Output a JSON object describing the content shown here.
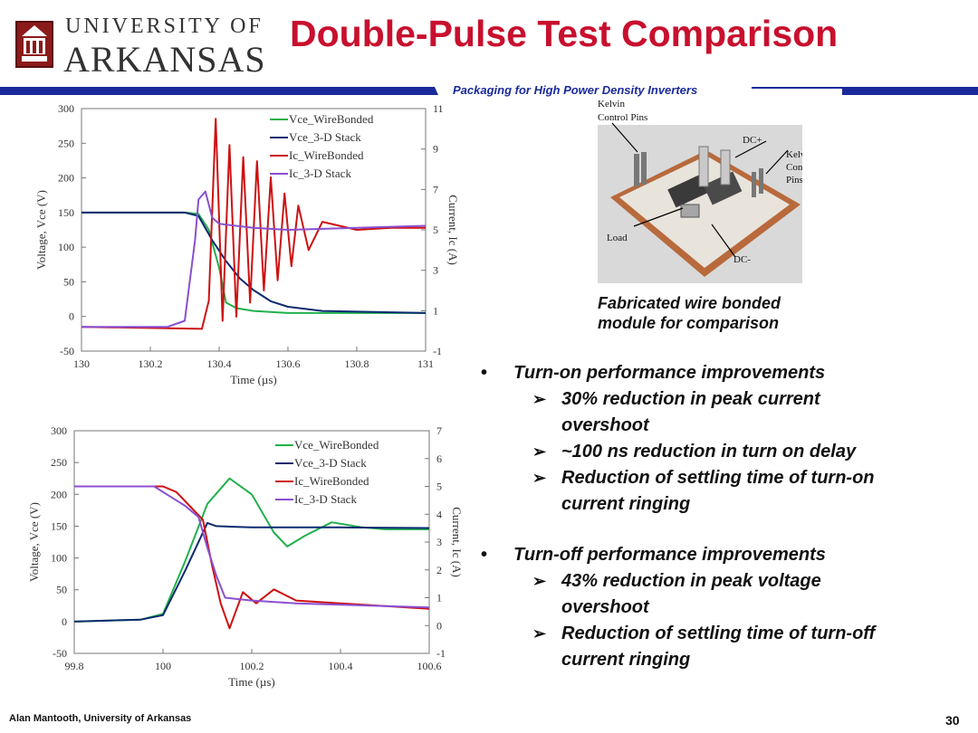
{
  "header": {
    "logo_line1": "UNIVERSITY OF",
    "logo_line2": "ARKANSAS",
    "title": "Double-Pulse Test Comparison",
    "subtitle": "Packaging for High Power Density Inverters"
  },
  "colors": {
    "title_red": "#c8102e",
    "band_blue": "#1a2a9a",
    "vce_wirebonded": "#22b04c",
    "vce_3d": "#0c2a70",
    "ic_wirebonded": "#cc1111",
    "ic_3d": "#8a4fd0"
  },
  "chart_data": [
    {
      "type": "line",
      "title": "",
      "xlabel": "Time (µs)",
      "ylabel": "Voltage, Vce (V)",
      "y2label": "Current, Ic (A)",
      "xlim": [
        130,
        131
      ],
      "ylim": [
        -50,
        300
      ],
      "y2lim": [
        -1,
        11
      ],
      "x_ticks": [
        "130",
        "130.2",
        "130.4",
        "130.6",
        "130.8",
        "131"
      ],
      "y_ticks": [
        "300",
        "250",
        "200",
        "150",
        "100",
        "50",
        "0",
        "-50"
      ],
      "y2_ticks": [
        "11",
        "9",
        "7",
        "5",
        "3",
        "1",
        "-1"
      ],
      "legend": [
        "Vce_WireBonded",
        "Vce_3-D Stack",
        "Ic_WireBonded",
        "Ic_3-D Stack"
      ],
      "legend_position": "top-right",
      "series": [
        {
          "name": "Vce_WireBonded",
          "axis": "left",
          "x": [
            130,
            130.3,
            130.34,
            130.37,
            130.4,
            130.42,
            130.45,
            130.5,
            130.6,
            130.7,
            131
          ],
          "values": [
            150,
            150,
            148,
            125,
            70,
            20,
            12,
            8,
            5,
            5,
            5
          ]
        },
        {
          "name": "Vce_3-D Stack",
          "axis": "left",
          "x": [
            130,
            130.3,
            130.34,
            130.38,
            130.42,
            130.46,
            130.5,
            130.55,
            130.6,
            130.7,
            131
          ],
          "values": [
            150,
            150,
            145,
            110,
            80,
            55,
            38,
            22,
            14,
            8,
            5
          ]
        },
        {
          "name": "Ic_WireBonded",
          "axis": "right",
          "x": [
            130,
            130.35,
            130.37,
            130.39,
            130.41,
            130.43,
            130.45,
            130.47,
            130.49,
            130.51,
            130.53,
            130.55,
            130.57,
            130.59,
            130.61,
            130.63,
            130.66,
            130.7,
            130.8,
            130.9,
            131
          ],
          "values": [
            0.2,
            0.1,
            1.5,
            10.5,
            0.5,
            9.2,
            0.7,
            8.6,
            1.4,
            8.4,
            2.0,
            7.6,
            2.5,
            6.8,
            3.2,
            6.2,
            4.0,
            5.4,
            5.0,
            5.1,
            5.1
          ]
        },
        {
          "name": "Ic_3-D Stack",
          "axis": "right",
          "x": [
            130,
            130.25,
            130.3,
            130.33,
            130.34,
            130.36,
            130.38,
            130.4,
            130.5,
            130.6,
            130.8,
            131
          ],
          "values": [
            0.2,
            0.2,
            0.5,
            4.5,
            6.5,
            6.9,
            5.6,
            5.3,
            5.1,
            5.0,
            5.1,
            5.2
          ]
        }
      ]
    },
    {
      "type": "line",
      "title": "",
      "xlabel": "Time (µs)",
      "ylabel": "Voltage, Vce (V)",
      "y2label": "Current, Ic (A)",
      "xlim": [
        99.8,
        100.6
      ],
      "ylim": [
        -50,
        300
      ],
      "y2lim": [
        -1,
        7
      ],
      "x_ticks": [
        "99.8",
        "100",
        "100.2",
        "100.4",
        "100.6"
      ],
      "y_ticks": [
        "300",
        "250",
        "200",
        "150",
        "100",
        "50",
        "0",
        "-50"
      ],
      "y2_ticks": [
        "7",
        "6",
        "5",
        "4",
        "3",
        "2",
        "1",
        "0",
        "-1"
      ],
      "legend": [
        "Vce_WireBonded",
        "Vce_3-D Stack",
        "Ic_WireBonded",
        "Ic_3-D Stack"
      ],
      "legend_position": "top-right",
      "series": [
        {
          "name": "Vce_WireBonded",
          "axis": "left",
          "x": [
            99.8,
            99.95,
            100.0,
            100.05,
            100.1,
            100.15,
            100.2,
            100.25,
            100.28,
            100.32,
            100.38,
            100.45,
            100.5,
            100.6
          ],
          "values": [
            0,
            3,
            12,
            95,
            185,
            225,
            200,
            140,
            118,
            135,
            156,
            148,
            145,
            145
          ]
        },
        {
          "name": "Vce_3-D Stack",
          "axis": "left",
          "x": [
            99.8,
            99.95,
            100.0,
            100.05,
            100.1,
            100.12,
            100.2,
            100.4,
            100.6
          ],
          "values": [
            0,
            3,
            10,
            80,
            155,
            150,
            148,
            148,
            147
          ]
        },
        {
          "name": "Ic_WireBonded",
          "axis": "right",
          "x": [
            99.8,
            100.0,
            100.03,
            100.06,
            100.09,
            100.11,
            100.13,
            100.15,
            100.18,
            100.21,
            100.25,
            100.3,
            100.4,
            100.6
          ],
          "values": [
            5.0,
            5.0,
            4.8,
            4.3,
            3.8,
            2.2,
            0.8,
            -0.1,
            1.2,
            0.8,
            1.3,
            0.9,
            0.8,
            0.6
          ]
        },
        {
          "name": "Ic_3-D Stack",
          "axis": "right",
          "x": [
            99.8,
            99.98,
            100.02,
            100.05,
            100.08,
            100.1,
            100.12,
            100.14,
            100.2,
            100.3,
            100.4,
            100.6
          ],
          "values": [
            5.0,
            5.0,
            4.6,
            4.3,
            3.9,
            2.8,
            1.8,
            1.0,
            0.9,
            0.8,
            0.75,
            0.65
          ]
        }
      ]
    }
  ],
  "photo": {
    "labels": [
      "Kelvin Control Pins",
      "DC+",
      "Kelvin Control Pins",
      "Load",
      "DC-"
    ]
  },
  "caption": {
    "line1": "Fabricated wire bonded",
    "line2": "module for comparison"
  },
  "bullets": [
    {
      "heading": "Turn-on performance improvements",
      "items": [
        [
          "30% reduction in peak current",
          "overshoot"
        ],
        [
          "~100 ns reduction in turn on delay"
        ],
        [
          "Reduction of settling time of turn-on",
          "current ringing"
        ]
      ]
    },
    {
      "heading": "Turn-off performance improvements",
      "items": [
        [
          "43% reduction in peak voltage",
          "overshoot"
        ],
        [
          "Reduction of settling time of turn-off",
          "current ringing"
        ]
      ]
    }
  ],
  "bullet_glyph": "•",
  "sub_glyph": "➢",
  "footer": {
    "author": "Alan Mantooth, University of Arkansas",
    "page": "30"
  }
}
